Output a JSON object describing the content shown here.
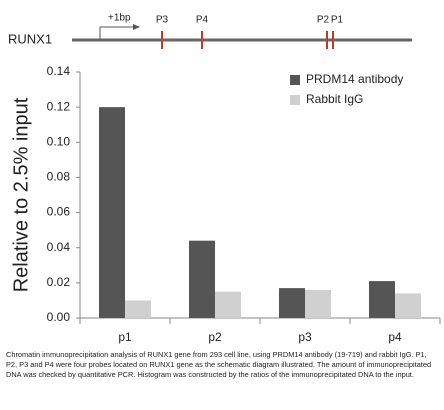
{
  "gene_diagram": {
    "gene": "RUNX1",
    "start": "+1bp",
    "probes": [
      "P3",
      "P4",
      "P2",
      "P1"
    ]
  },
  "chart_data": {
    "type": "bar",
    "y_label": "Relative to 2.5% input",
    "categories": [
      "p1",
      "p2",
      "p3",
      "p4"
    ],
    "series": [
      {
        "name": "PRDM14 antibody",
        "color": "#555555",
        "values": [
          0.12,
          0.044,
          0.017,
          0.021
        ]
      },
      {
        "name": "Rabbit IgG",
        "color": "#d0d0d0",
        "values": [
          0.01,
          0.015,
          0.016,
          0.014
        ]
      }
    ],
    "ylim": [
      0,
      0.14
    ],
    "yticks": [
      {
        "value": 0,
        "label": "0.00"
      },
      0.02,
      0.04,
      0.06,
      0.08,
      {
        "value": 0.1,
        "label": "0.10"
      },
      0.12,
      0.14
    ],
    "legend": "top-right"
  },
  "caption": "Chromatin immunoprecipitation analysis of RUNX1 gene from 293 cell line, using PRDM14 antibody (19-719) and rabbit IgG. P1, P2, P3 and P4 were four probes located on RUNX1 gene as the schematic diagram illustrated. The amount of immunoprecipitated DNA was checked by quantitative PCR. Histogram was constructed by the ratios of the immunoprecipitated DNA to the input."
}
